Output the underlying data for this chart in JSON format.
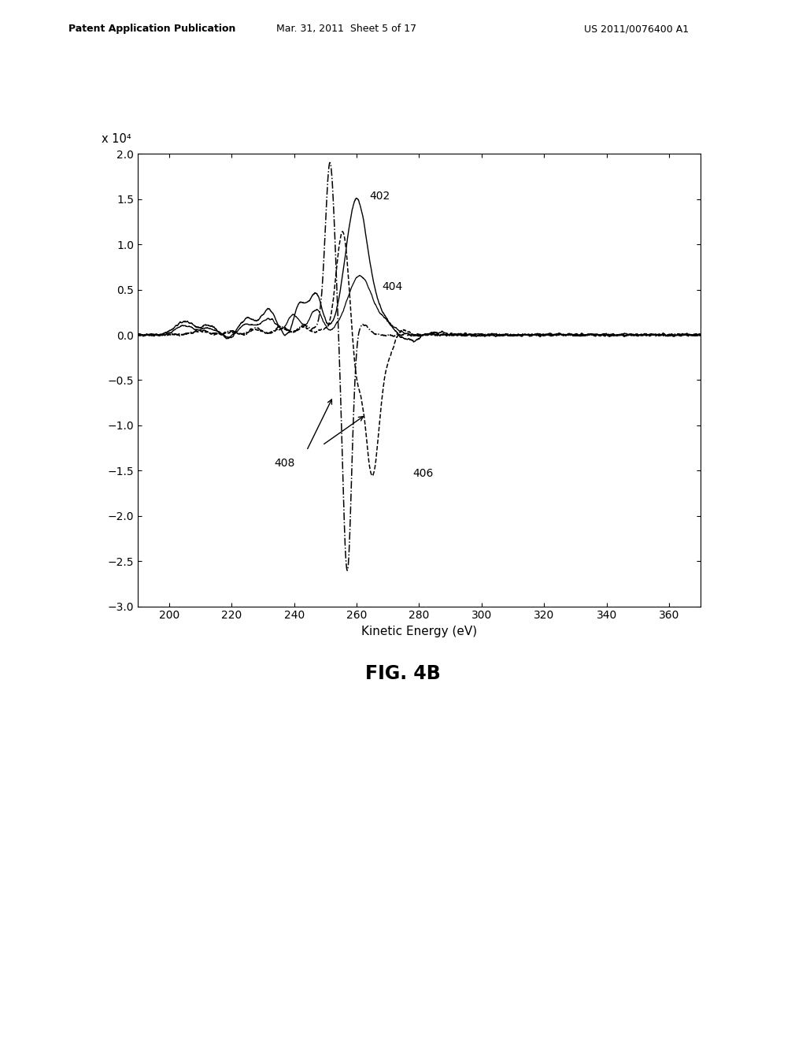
{
  "header_left": "Patent Application Publication",
  "header_mid": "Mar. 31, 2011  Sheet 5 of 17",
  "header_right": "US 2011/0076400 A1",
  "fig_label": "FIG. 4B",
  "xlabel": "Kinetic Energy (eV)",
  "ylabel_scale": "x 10⁴",
  "xlim": [
    190,
    370
  ],
  "ylim": [
    -3,
    2
  ],
  "xticks": [
    200,
    220,
    240,
    260,
    280,
    300,
    320,
    340,
    360
  ],
  "yticks": [
    -3,
    -2.5,
    -2,
    -1.5,
    -1,
    -0.5,
    0,
    0.5,
    1,
    1.5,
    2
  ],
  "background_color": "#ffffff"
}
